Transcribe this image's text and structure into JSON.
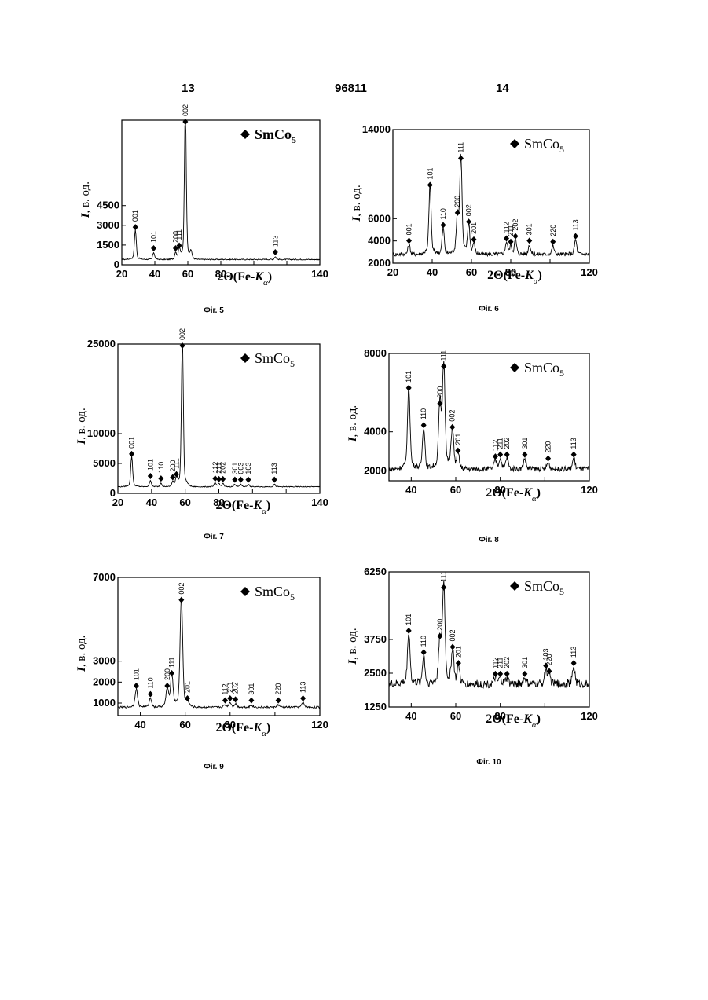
{
  "header": {
    "left": "13",
    "center": "96811",
    "right": "14"
  },
  "chart_data": [
    {
      "type": "line",
      "caption": "Фіг. 5",
      "ylabel_symbol": "I",
      "ylabel_rest": ", в. од.",
      "xlabel_main": "2Θ(Fe-",
      "xlabel_k": "K",
      "xlabel_sub": "α",
      "xlabel_close": ")",
      "legend_main": "SmCo",
      "legend_sub": "5",
      "legend_bold": true,
      "xlim": [
        20,
        140
      ],
      "ylim": [
        0,
        11000
      ],
      "xticks": [
        20,
        40,
        60,
        80,
        100,
        120,
        140
      ],
      "xtick_labels": [
        "20",
        "40",
        "60",
        "80",
        "",
        "",
        "140"
      ],
      "yticks": [
        0,
        1500,
        3000,
        4500
      ],
      "ytick_labels": [
        "0",
        "1500",
        "3000",
        "4500"
      ],
      "baseline": 400,
      "noise": 40,
      "peaks": [
        {
          "x": 28.2,
          "h": 2100,
          "label": "001"
        },
        {
          "x": 39.3,
          "h": 500,
          "label": "101"
        },
        {
          "x": 52.6,
          "h": 500,
          "label": "200"
        },
        {
          "x": 54.8,
          "h": 700,
          "label": "111"
        },
        {
          "x": 58.5,
          "h": 10600,
          "label": "002"
        },
        {
          "x": 62.0,
          "h": 450,
          "label": ""
        },
        {
          "x": 113.0,
          "h": 200,
          "label": "113"
        }
      ]
    },
    {
      "type": "line",
      "caption": "Фіг. 6",
      "ylabel_symbol": "I",
      "ylabel_rest": ", в. од.",
      "xlabel_main": "2Θ(Fe-",
      "xlabel_k": "K",
      "xlabel_sub": "α",
      "xlabel_close": ")",
      "legend_main": "SmCo",
      "legend_sub": "5",
      "legend_bold": false,
      "xlim": [
        20,
        120
      ],
      "ylim": [
        2000,
        14000
      ],
      "xticks": [
        20,
        40,
        60,
        80,
        100,
        120
      ],
      "xtick_labels": [
        "20",
        "40",
        "60",
        "80",
        "",
        "120"
      ],
      "yticks": [
        2000,
        4000,
        6000,
        14000
      ],
      "ytick_labels": [
        "2000",
        "4000",
        "6000",
        "14000"
      ],
      "baseline": 2800,
      "noise": 180,
      "peaks": [
        {
          "x": 28.2,
          "h": 800,
          "label": "001"
        },
        {
          "x": 38.9,
          "h": 5800,
          "label": "101"
        },
        {
          "x": 45.6,
          "h": 2200,
          "label": "110"
        },
        {
          "x": 52.9,
          "h": 3300,
          "label": "200"
        },
        {
          "x": 54.6,
          "h": 8200,
          "label": "111"
        },
        {
          "x": 58.6,
          "h": 2500,
          "label": "002"
        },
        {
          "x": 61.2,
          "h": 900,
          "label": "201"
        },
        {
          "x": 77.8,
          "h": 1000,
          "label": "112"
        },
        {
          "x": 80.0,
          "h": 700,
          "label": "211"
        },
        {
          "x": 82.4,
          "h": 1200,
          "label": "202"
        },
        {
          "x": 89.5,
          "h": 800,
          "label": "301"
        },
        {
          "x": 101.5,
          "h": 700,
          "label": "220"
        },
        {
          "x": 113.0,
          "h": 1200,
          "label": "113"
        }
      ]
    },
    {
      "type": "line",
      "caption": "Фіг. 7",
      "ylabel_symbol": "I",
      "ylabel_rest": ", в. од.",
      "xlabel_main": "2Θ(Fe-",
      "xlabel_k": "K",
      "xlabel_sub": "α",
      "xlabel_close": ")",
      "legend_main": "SmCo",
      "legend_sub": "5",
      "legend_bold": false,
      "xlim": [
        20,
        140
      ],
      "ylim": [
        0,
        25000
      ],
      "xticks": [
        20,
        40,
        60,
        80,
        100,
        120,
        140
      ],
      "xtick_labels": [
        "20",
        "40",
        "60",
        "80",
        "",
        "",
        "140"
      ],
      "yticks": [
        0,
        5000,
        10000,
        25000
      ],
      "ytick_labels": [
        "0",
        "5000",
        "10000",
        "25000"
      ],
      "baseline": 1100,
      "noise": 70,
      "peaks": [
        {
          "x": 28.2,
          "h": 4700,
          "label": "001"
        },
        {
          "x": 39.3,
          "h": 1000,
          "label": "101"
        },
        {
          "x": 45.6,
          "h": 600,
          "label": "110"
        },
        {
          "x": 52.6,
          "h": 800,
          "label": "200"
        },
        {
          "x": 54.8,
          "h": 1300,
          "label": "111"
        },
        {
          "x": 58.3,
          "h": 23100,
          "label": "002"
        },
        {
          "x": 77.8,
          "h": 600,
          "label": "112"
        },
        {
          "x": 80.0,
          "h": 500,
          "label": "211"
        },
        {
          "x": 82.4,
          "h": 500,
          "label": "202"
        },
        {
          "x": 89.5,
          "h": 400,
          "label": "301"
        },
        {
          "x": 93.0,
          "h": 400,
          "label": "003"
        },
        {
          "x": 97.5,
          "h": 400,
          "label": "103"
        },
        {
          "x": 113.0,
          "h": 400,
          "label": "113"
        }
      ]
    },
    {
      "type": "line",
      "caption": "Фіг. 8",
      "ylabel_symbol": "I",
      "ylabel_rest": ", в. од.",
      "xlabel_main": "2Θ(Fe-",
      "xlabel_k": "K",
      "xlabel_sub": "α",
      "xlabel_close": ")",
      "legend_main": "SmCo",
      "legend_sub": "5",
      "legend_bold": false,
      "xlim": [
        30,
        120
      ],
      "ylim": [
        1500,
        8000
      ],
      "xticks": [
        40,
        60,
        80,
        100,
        120
      ],
      "xtick_labels": [
        "40",
        "60",
        "80",
        "",
        "120"
      ],
      "yticks": [
        2000,
        4000,
        8000
      ],
      "ytick_labels": [
        "2000",
        "4000",
        "8000"
      ],
      "baseline": 2100,
      "noise": 130,
      "peaks": [
        {
          "x": 38.9,
          "h": 3900,
          "label": "101"
        },
        {
          "x": 45.6,
          "h": 2000,
          "label": "110"
        },
        {
          "x": 52.9,
          "h": 3100,
          "label": "200"
        },
        {
          "x": 54.6,
          "h": 5000,
          "label": "111"
        },
        {
          "x": 58.5,
          "h": 1900,
          "label": "002"
        },
        {
          "x": 61.0,
          "h": 700,
          "label": "201"
        },
        {
          "x": 77.8,
          "h": 400,
          "label": "112"
        },
        {
          "x": 80.0,
          "h": 500,
          "label": "211"
        },
        {
          "x": 83.0,
          "h": 500,
          "label": "202"
        },
        {
          "x": 91.0,
          "h": 500,
          "label": "301"
        },
        {
          "x": 101.5,
          "h": 300,
          "label": "220"
        },
        {
          "x": 113.0,
          "h": 500,
          "label": "113"
        }
      ]
    },
    {
      "type": "line",
      "caption": "Фіг. 9",
      "ylabel_symbol": "I",
      "ylabel_rest": ", в. од.",
      "xlabel_main": "2Θ(Fe-",
      "xlabel_k": "K",
      "xlabel_sub": "α",
      "xlabel_close": ")",
      "legend_main": "SmCo",
      "legend_sub": "5",
      "legend_bold": false,
      "xlim": [
        30,
        120
      ],
      "ylim": [
        400,
        7000
      ],
      "xticks": [
        40,
        60,
        80,
        100,
        120
      ],
      "xtick_labels": [
        "40",
        "60",
        "80",
        "",
        "120"
      ],
      "yticks": [
        1000,
        2000,
        3000,
        7000
      ],
      "ytick_labels": [
        "1000",
        "2000",
        "3000",
        "7000"
      ],
      "baseline": 800,
      "noise": 45,
      "peaks": [
        {
          "x": 38.2,
          "h": 800,
          "label": "101"
        },
        {
          "x": 44.5,
          "h": 400,
          "label": "110"
        },
        {
          "x": 52.0,
          "h": 800,
          "label": "200"
        },
        {
          "x": 54.0,
          "h": 1400,
          "label": "111"
        },
        {
          "x": 58.3,
          "h": 4900,
          "label": "002"
        },
        {
          "x": 61.0,
          "h": 200,
          "label": "201"
        },
        {
          "x": 77.8,
          "h": 100,
          "label": "112"
        },
        {
          "x": 80.0,
          "h": 200,
          "label": "211"
        },
        {
          "x": 82.4,
          "h": 150,
          "label": "202"
        },
        {
          "x": 89.5,
          "h": 100,
          "label": "301"
        },
        {
          "x": 101.5,
          "h": 100,
          "label": "220"
        },
        {
          "x": 112.5,
          "h": 200,
          "label": "113"
        }
      ]
    },
    {
      "type": "line",
      "caption": "Фіг. 10",
      "ylabel_symbol": "I",
      "ylabel_rest": ", в. од.",
      "xlabel_main": "2Θ(Fe-",
      "xlabel_k": "K",
      "xlabel_sub": "α",
      "xlabel_close": ")",
      "legend_main": "SmCo",
      "legend_sub": "5",
      "legend_bold": false,
      "xlim": [
        30,
        120
      ],
      "ylim": [
        1250,
        6250
      ],
      "xticks": [
        40,
        60,
        80,
        100,
        120
      ],
      "xtick_labels": [
        "40",
        "60",
        "80",
        "",
        "120"
      ],
      "yticks": [
        1250,
        2500,
        3750,
        6250
      ],
      "ytick_labels": [
        "1250",
        "2500",
        "3750",
        "6250"
      ],
      "baseline": 2100,
      "noise": 150,
      "peaks": [
        {
          "x": 38.9,
          "h": 1800,
          "label": "101"
        },
        {
          "x": 45.6,
          "h": 1000,
          "label": "110"
        },
        {
          "x": 52.9,
          "h": 1600,
          "label": "200"
        },
        {
          "x": 54.6,
          "h": 3400,
          "label": "111"
        },
        {
          "x": 58.6,
          "h": 1200,
          "label": "002"
        },
        {
          "x": 61.2,
          "h": 600,
          "label": "201"
        },
        {
          "x": 77.8,
          "h": 200,
          "label": "112"
        },
        {
          "x": 80.0,
          "h": 200,
          "label": "211"
        },
        {
          "x": 83.0,
          "h": 200,
          "label": "202"
        },
        {
          "x": 91.0,
          "h": 200,
          "label": "301"
        },
        {
          "x": 100.5,
          "h": 500,
          "label": "103"
        },
        {
          "x": 102.0,
          "h": 300,
          "label": "220"
        },
        {
          "x": 113.0,
          "h": 600,
          "label": "113"
        }
      ]
    }
  ]
}
